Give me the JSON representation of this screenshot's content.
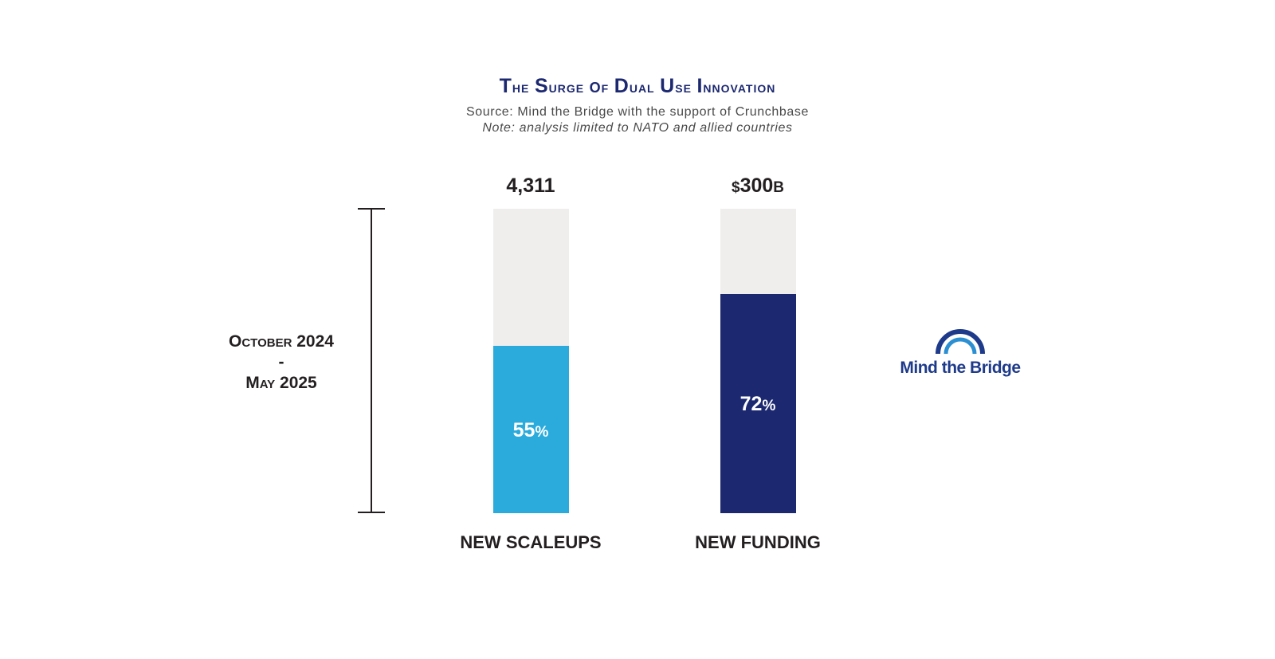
{
  "chart_data": {
    "type": "bar",
    "title": "The Surge of Dual Use Innovation",
    "subtitle": "Source: Mind the Bridge with the support of Crunchbase",
    "note": "Note: analysis limited to NATO and allied countries",
    "period": {
      "line1": "October 2024",
      "line2": "-",
      "line3": "May 2025"
    },
    "categories": [
      "NEW SCALEUPS",
      "NEW FUNDING"
    ],
    "totals": [
      {
        "prefix": "",
        "number": "4,311",
        "suffix": ""
      },
      {
        "prefix": "$",
        "number": "300",
        "suffix": "B"
      }
    ],
    "values": [
      55,
      72
    ],
    "value_labels": [
      "55",
      "72"
    ],
    "value_suffix": "%",
    "ylim": [
      0,
      100
    ],
    "colors": [
      "#2babdc",
      "#1c2870"
    ],
    "track_color": "#f0eeed"
  },
  "logo": {
    "text": "Mind the Bridge",
    "icon": "arch-bridge-icon",
    "color": "#1e3a8a"
  }
}
